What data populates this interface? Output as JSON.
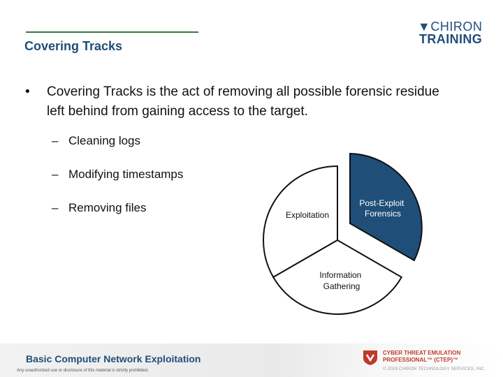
{
  "slide": {
    "title": "Covering Tracks"
  },
  "logo": {
    "line1": "CHIRON",
    "line2": "TRAINING"
  },
  "content": {
    "bullet": "Covering Tracks is the act of removing all possible forensic residue left behind from gaining access to the target.",
    "subitems": [
      "Cleaning logs",
      "Modifying timestamps",
      "Removing files"
    ]
  },
  "cycle_diagram": {
    "segments": [
      "Post-Exploit Forensics",
      "Information Gathering",
      "Exploitation"
    ],
    "highlighted": "Post-Exploit Forensics",
    "highlight_color": "#1f4e79"
  },
  "footer": {
    "course_title": "Basic Computer Network Exploitation",
    "disclaimer": "Any unauthorized use or disclosure of this material is strictly prohibited.",
    "brand_line1": "CYBER THREAT EMULATION",
    "brand_line2": "PROFESSIONAL™ (CTEP)™",
    "copyright": "© 2019 CHIRON TECHNOLOGY SERVICES, INC."
  }
}
